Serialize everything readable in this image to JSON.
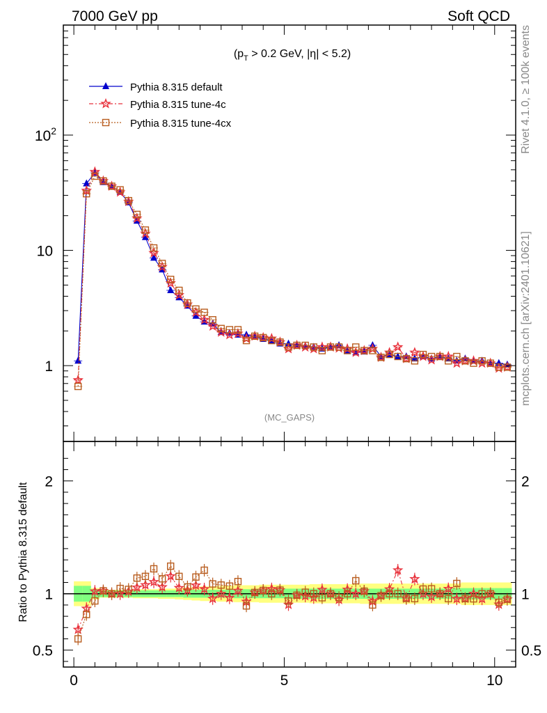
{
  "header": {
    "left": "7000 GeV pp",
    "right": "Soft QCD",
    "side_version": "Rivet 4.1.0, ≥ 100k events",
    "side_site": "mcplots.cern.ch [arXiv:2401.10621]"
  },
  "chart_data": {
    "type": "line",
    "title": "(p_T > 0.2 GeV, |η| < 5.2)",
    "title_parts": [
      "(p",
      "T",
      " > 0.2 GeV, |",
      "η",
      "| < 5.2)"
    ],
    "watermark": "(MC_GAPS)",
    "xlabel": "",
    "ylabel": "",
    "ratio_ylabel": "Ratio to Pythia 8.315 default",
    "xlim": [
      -0.25,
      10.5
    ],
    "ylim": [
      0.22,
      900
    ],
    "yscale": "log",
    "ratio_ylim": [
      0.35,
      2.35
    ],
    "x_ticks": [
      "0",
      "5",
      "10"
    ],
    "x_tick_values": [
      0,
      5,
      10
    ],
    "y_ticks": [
      "1",
      "10",
      "10^2"
    ],
    "y_tick_values": [
      1,
      10,
      100
    ],
    "ratio_ticks": [
      "0.5",
      "1",
      "2"
    ],
    "ratio_tick_values": [
      0.5,
      1,
      2
    ],
    "x": [
      0.1,
      0.3,
      0.5,
      0.7,
      0.9,
      1.1,
      1.3,
      1.5,
      1.7,
      1.9,
      2.1,
      2.3,
      2.5,
      2.7,
      2.9,
      3.1,
      3.3,
      3.5,
      3.7,
      3.9,
      4.1,
      4.3,
      4.5,
      4.7,
      4.9,
      5.1,
      5.3,
      5.5,
      5.7,
      5.9,
      6.1,
      6.3,
      6.5,
      6.7,
      6.9,
      7.1,
      7.3,
      7.5,
      7.7,
      7.9,
      8.1,
      8.3,
      8.5,
      8.7,
      8.9,
      9.1,
      9.3,
      9.5,
      9.7,
      9.9,
      10.1,
      10.3
    ],
    "series": [
      {
        "name": "Pythia 8.315 default",
        "color": "#0000cc",
        "dash": "",
        "marker": "triangle",
        "values": [
          1.1,
          38,
          47,
          39,
          36,
          32,
          26,
          18,
          13,
          8.6,
          6.8,
          4.5,
          3.9,
          3.3,
          2.7,
          2.4,
          2.3,
          1.95,
          1.92,
          1.85,
          1.85,
          1.78,
          1.7,
          1.65,
          1.55,
          1.55,
          1.52,
          1.48,
          1.45,
          1.4,
          1.45,
          1.5,
          1.35,
          1.3,
          1.32,
          1.5,
          1.2,
          1.25,
          1.2,
          1.2,
          1.15,
          1.2,
          1.15,
          1.2,
          1.15,
          1.1,
          1.15,
          1.1,
          1.1,
          1.05,
          1.05,
          1.02
        ]
      },
      {
        "name": "Pythia 8.315 tune-4c",
        "color": "#e8323c",
        "dash": "6,3,2,3",
        "marker": "star",
        "values": [
          0.75,
          33,
          48,
          40,
          36,
          32,
          26.5,
          19,
          14,
          9.5,
          7.2,
          5.2,
          4.1,
          3.4,
          2.9,
          2.5,
          2.2,
          1.95,
          1.85,
          1.9,
          1.72,
          1.8,
          1.75,
          1.72,
          1.6,
          1.4,
          1.5,
          1.45,
          1.4,
          1.45,
          1.45,
          1.42,
          1.4,
          1.3,
          1.35,
          1.4,
          1.18,
          1.3,
          1.45,
          1.15,
          1.3,
          1.2,
          1.12,
          1.2,
          1.2,
          1.05,
          1.1,
          1.1,
          1.05,
          1.05,
          0.95,
          0.97
        ]
      },
      {
        "name": "Pythia 8.315 tune-4cx",
        "color": "#b85c1e",
        "dash": "2,2",
        "marker": "square",
        "values": [
          0.66,
          31,
          44,
          40,
          36,
          33.5,
          27,
          20.5,
          15,
          10.5,
          7.7,
          5.6,
          4.5,
          3.5,
          3.1,
          2.9,
          2.5,
          2.1,
          2.05,
          2.05,
          1.65,
          1.8,
          1.75,
          1.65,
          1.6,
          1.45,
          1.5,
          1.5,
          1.45,
          1.35,
          1.45,
          1.45,
          1.35,
          1.45,
          1.35,
          1.35,
          1.18,
          1.25,
          1.2,
          1.15,
          1.1,
          1.25,
          1.2,
          1.2,
          1.1,
          1.2,
          1.1,
          1.05,
          1.1,
          1.05,
          0.97,
          0.97
        ]
      }
    ],
    "band_inner_halfwidth": [
      0.07,
      0.07,
      0.04,
      0.03,
      0.03,
      0.03,
      0.03,
      0.03,
      0.03,
      0.03,
      0.03,
      0.03,
      0.03,
      0.035,
      0.035,
      0.035,
      0.035,
      0.035,
      0.035,
      0.04,
      0.04,
      0.04,
      0.04,
      0.04,
      0.04,
      0.045,
      0.045,
      0.045,
      0.045,
      0.045,
      0.045,
      0.045,
      0.045,
      0.045,
      0.045,
      0.045,
      0.045,
      0.045,
      0.045,
      0.045,
      0.045,
      0.045,
      0.045,
      0.045,
      0.045,
      0.05,
      0.05,
      0.05,
      0.05,
      0.05,
      0.05,
      0.05
    ],
    "band_outer_halfwidth": [
      0.11,
      0.11,
      0.05,
      0.035,
      0.035,
      0.035,
      0.035,
      0.04,
      0.04,
      0.04,
      0.045,
      0.045,
      0.05,
      0.055,
      0.06,
      0.065,
      0.065,
      0.07,
      0.07,
      0.075,
      0.075,
      0.075,
      0.08,
      0.08,
      0.08,
      0.08,
      0.08,
      0.08,
      0.085,
      0.085,
      0.085,
      0.085,
      0.085,
      0.085,
      0.09,
      0.09,
      0.09,
      0.09,
      0.09,
      0.09,
      0.09,
      0.09,
      0.09,
      0.09,
      0.09,
      0.09,
      0.1,
      0.1,
      0.1,
      0.1,
      0.1,
      0.1
    ]
  }
}
